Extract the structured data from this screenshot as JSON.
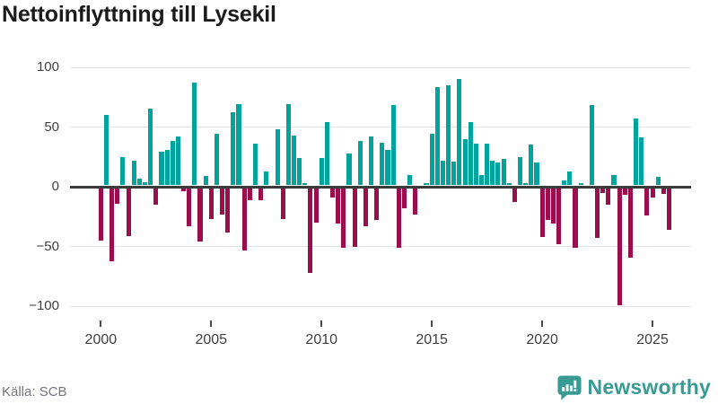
{
  "header": {
    "title": "Nettoinflyttning till Lysekil"
  },
  "footer": {
    "source": "Källa: SCB",
    "brand_name": "Newsworthy",
    "brand_icon": "chart-speech-bubble-icon"
  },
  "colors": {
    "positive_bar": "#00a49c",
    "negative_bar": "#9b0e4e",
    "zero_axis": "#3b3b3b",
    "gridline": "#e4e4e4",
    "title_text": "#1b1b1b",
    "axis_text": "#3f3f3f",
    "muted_text": "#75757e",
    "brand_teal": "#379b94"
  },
  "chart_data": {
    "type": "bar",
    "title": "Nettoinflyttning till Lysekil",
    "xlabel": "",
    "ylabel": "",
    "ylim": [
      -110,
      110
    ],
    "grid": true,
    "legend": false,
    "y_tick_labels": [
      "100",
      "50",
      "0",
      "−50",
      "−100"
    ],
    "y_tick_values": [
      100,
      50,
      0,
      -50,
      -100
    ],
    "x_tick_years": [
      2000,
      2005,
      2010,
      2015,
      2020,
      2025
    ],
    "period_per_year": 4,
    "series_by_year": [
      {
        "year": 2000,
        "values": [
          -44,
          59,
          -61,
          -13
        ]
      },
      {
        "year": 2001,
        "values": [
          24,
          -40,
          21,
          6
        ]
      },
      {
        "year": 2002,
        "values": [
          3,
          64,
          -14,
          28
        ]
      },
      {
        "year": 2003,
        "values": [
          30,
          37,
          41,
          -3
        ]
      },
      {
        "year": 2004,
        "values": [
          -32,
          86,
          -45,
          8
        ]
      },
      {
        "year": 2005,
        "values": [
          -26,
          43,
          -22,
          -37
        ]
      },
      {
        "year": 2006,
        "values": [
          61,
          68,
          -52,
          -10
        ]
      },
      {
        "year": 2007,
        "values": [
          35,
          -10,
          12,
          0
        ]
      },
      {
        "year": 2008,
        "values": [
          47,
          -26,
          68,
          42
        ]
      },
      {
        "year": 2009,
        "values": [
          23,
          2,
          -71,
          -29
        ]
      },
      {
        "year": 2010,
        "values": [
          23,
          53,
          -8,
          -30
        ]
      },
      {
        "year": 2011,
        "values": [
          -50,
          27,
          -49,
          37
        ]
      },
      {
        "year": 2012,
        "values": [
          -32,
          41,
          -27,
          36
        ]
      },
      {
        "year": 2013,
        "values": [
          30,
          67,
          -50,
          -17
        ]
      },
      {
        "year": 2014,
        "values": [
          9,
          -22,
          0,
          2
        ]
      },
      {
        "year": 2015,
        "values": [
          43,
          82,
          21,
          84
        ]
      },
      {
        "year": 2016,
        "values": [
          20,
          89,
          39,
          53
        ]
      },
      {
        "year": 2017,
        "values": [
          35,
          9,
          35,
          21
        ]
      },
      {
        "year": 2018,
        "values": [
          19,
          22,
          2,
          -12
        ]
      },
      {
        "year": 2019,
        "values": [
          24,
          2,
          34,
          19
        ]
      },
      {
        "year": 2020,
        "values": [
          -41,
          -27,
          -30,
          -47
        ]
      },
      {
        "year": 2021,
        "values": [
          4,
          12,
          -50,
          2
        ]
      },
      {
        "year": 2022,
        "values": [
          0,
          67,
          -42,
          -4
        ]
      },
      {
        "year": 2023,
        "values": [
          -14,
          9,
          -98,
          -6
        ]
      },
      {
        "year": 2024,
        "values": [
          -58,
          56,
          40,
          -23
        ]
      },
      {
        "year": 2025,
        "values": [
          -8,
          7,
          -5,
          -35
        ]
      }
    ]
  }
}
